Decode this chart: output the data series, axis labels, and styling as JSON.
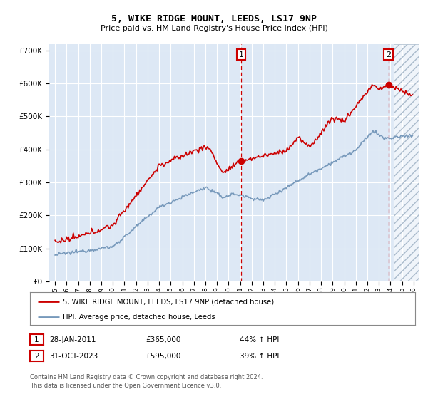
{
  "title": "5, WIKE RIDGE MOUNT, LEEDS, LS17 9NP",
  "subtitle": "Price paid vs. HM Land Registry's House Price Index (HPI)",
  "legend_property": "5, WIKE RIDGE MOUNT, LEEDS, LS17 9NP (detached house)",
  "legend_hpi": "HPI: Average price, detached house, Leeds",
  "sale1_date": "28-JAN-2011",
  "sale1_price": 365000,
  "sale1_label": "44% ↑ HPI",
  "sale1_x": 2011.08,
  "sale2_date": "31-OCT-2023",
  "sale2_price": 595000,
  "sale2_label": "39% ↑ HPI",
  "sale2_x": 2023.83,
  "footnote1": "Contains HM Land Registry data © Crown copyright and database right 2024.",
  "footnote2": "This data is licensed under the Open Government Licence v3.0.",
  "ylim_min": 0,
  "ylim_max": 720000,
  "xlim_min": 1994.5,
  "xlim_max": 2026.5,
  "color_red": "#cc0000",
  "color_blue": "#7799bb",
  "color_bg": "#dde8f5",
  "hatch_start": 2024.25
}
